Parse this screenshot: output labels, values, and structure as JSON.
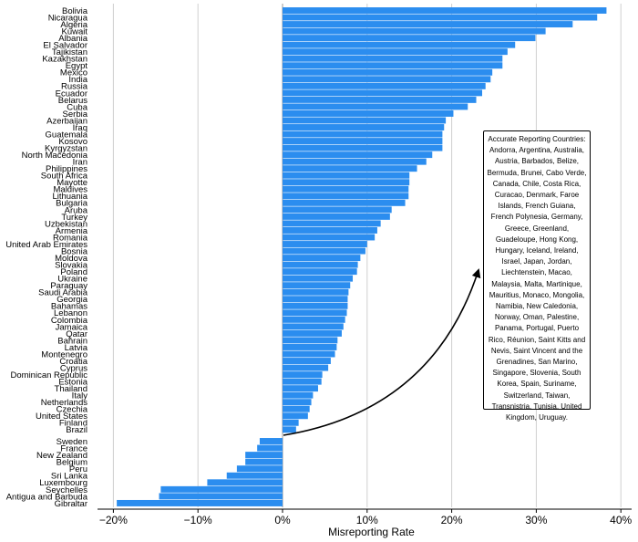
{
  "chart_data": {
    "type": "bar",
    "orientation": "horizontal",
    "xlabel": "Misreporting Rate",
    "ylabel": "",
    "xlim": [
      -22,
      41
    ],
    "xticks": [
      -20,
      -10,
      0,
      10,
      20,
      30,
      40
    ],
    "xtick_labels": [
      "−20%",
      "−10%",
      "0%",
      "10%",
      "20%",
      "30%",
      "40%"
    ],
    "grid": "vertical",
    "bar_color": "#2b8def",
    "positive": {
      "categories": [
        "Bolivia",
        "Nicaragua",
        "Algeria",
        "Kuwait",
        "Albania",
        "El Salvador",
        "Tajikistan",
        "Kazakhstan",
        "Egypt",
        "Mexico",
        "India",
        "Russia",
        "Ecuador",
        "Belarus",
        "Cuba",
        "Serbia",
        "Azerbaijan",
        "Iraq",
        "Guatemala",
        "Kosovo",
        "Kyrgyzstan",
        "North Macedonia",
        "Iran",
        "Philippines",
        "South Africa",
        "Mayotte",
        "Maldives",
        "Lithuania",
        "Bulgaria",
        "Aruba",
        "Turkey",
        "Uzbekistan",
        "Armenia",
        "Romania",
        "United Arab Emirates",
        "Bosnia",
        "Moldova",
        "Slovakia",
        "Poland",
        "Ukraine",
        "Paraguay",
        "Saudi Arabia",
        "Georgia",
        "Bahamas",
        "Lebanon",
        "Colombia",
        "Jamaica",
        "Qatar",
        "Bahrain",
        "Latvia",
        "Montenegro",
        "Croatia",
        "Cyprus",
        "Dominican Republic",
        "Estonia",
        "Thailand",
        "Italy",
        "Netherlands",
        "Czechia",
        "United States",
        "Finland",
        "Brazil"
      ],
      "values": [
        38.3,
        37.2,
        34.3,
        31.1,
        29.9,
        27.5,
        26.6,
        26.0,
        26.0,
        24.8,
        24.6,
        24.0,
        23.6,
        22.9,
        21.9,
        20.2,
        19.3,
        19.1,
        18.9,
        18.9,
        18.9,
        17.7,
        17.0,
        15.9,
        15.0,
        15.0,
        14.9,
        14.9,
        14.5,
        12.9,
        12.7,
        11.6,
        11.2,
        10.9,
        10.0,
        9.8,
        9.2,
        8.9,
        8.8,
        8.3,
        8.0,
        7.8,
        7.7,
        7.7,
        7.6,
        7.4,
        7.2,
        7.0,
        6.5,
        6.4,
        6.2,
        5.7,
        5.4,
        4.7,
        4.6,
        4.2,
        3.6,
        3.4,
        3.2,
        3.0,
        1.9,
        1.6
      ]
    },
    "negative": {
      "categories": [
        "Sweden",
        "France",
        "New Zealand",
        "Belgium",
        "Peru",
        "Sri Lanka",
        "Luxembourg",
        "Seychelles",
        "Antigua and Barbuda",
        "Gibraltar"
      ],
      "values": [
        -2.7,
        -3.0,
        -4.4,
        -4.4,
        -5.4,
        -6.6,
        -8.9,
        -14.4,
        -14.6,
        -19.6
      ]
    },
    "annotation": {
      "text": "Accurate Reporting Countries: Andorra, Argentina, Australia, Austria, Barbados, Belize, Bermuda, Brunei, Cabo Verde, Canada, Chile, Costa Rica, Curacao, Denmark, Faroe Islands, French Guiana, French Polynesia, Germany, Greece, Greenland, Guadeloupe, Hong Kong, Hungary, Iceland, Ireland, Israel, Japan, Jordan, Liechtenstein, Macao, Malaysia, Malta, Martinique, Mauritius, Monaco, Mongolia, Namibia, New Caledonia, Norway, Oman, Palestine, Panama, Portugal, Puerto Rico, Réunion, Saint Kitts and Nevis, Saint Vincent and the Grenadines, San Marino, Singapore, Slovenia, South Korea, Spain, Suriname, Switzerland, Taiwan, Transnistria, Tunisia, United Kingdom, Uruguay.",
      "arrow_from": "0%",
      "placement": "right"
    }
  }
}
